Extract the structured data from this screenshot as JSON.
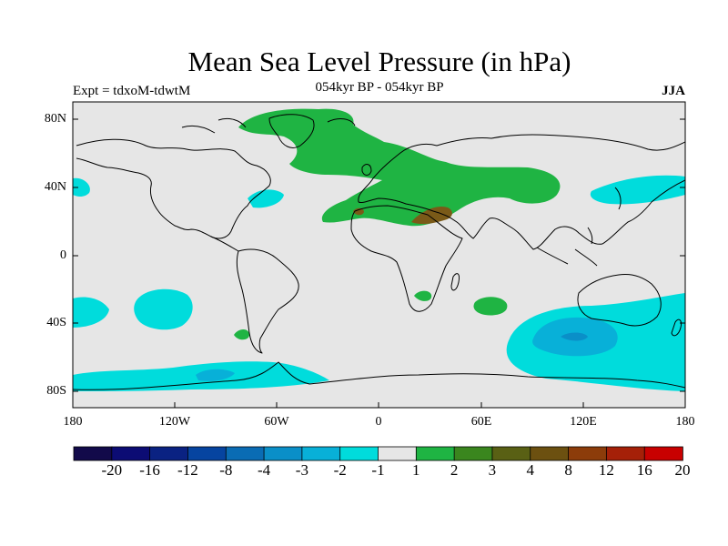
{
  "header": {
    "title": "Mean Sea Level Pressure (in hPa)",
    "left_label": "Expt = tdxoM-tdwtM",
    "center_label": "054kyr BP - 054kyr BP",
    "right_label": "JJA"
  },
  "axes": {
    "lat_ticks": [
      "80N",
      "40N",
      "0",
      "40S",
      "80S"
    ],
    "lon_ticks": [
      "180",
      "120W",
      "60W",
      "0",
      "60E",
      "120E",
      "180"
    ]
  },
  "colorbar": {
    "labels": [
      "-20",
      "-16",
      "-12",
      "-8",
      "-4",
      "-3",
      "-2",
      "-1",
      "1",
      "2",
      "3",
      "4",
      "8",
      "12",
      "16",
      "20"
    ],
    "colors": [
      "#120a4a",
      "#0c0c74",
      "#0a2282",
      "#0644a0",
      "#0a6cb4",
      "#0a8fc8",
      "#08b0d8",
      "#00dcdc",
      "#e6e6e6",
      "#1fb443",
      "#3a861e",
      "#596014",
      "#6c5010",
      "#8c3c0a",
      "#a52008",
      "#c80000"
    ],
    "neutral_color": "#e6e6e6"
  }
}
